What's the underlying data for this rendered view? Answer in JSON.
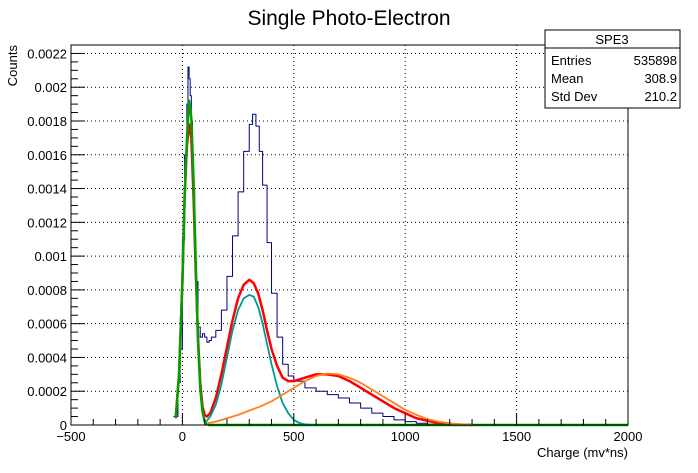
{
  "chart_data": {
    "type": "line",
    "title": "Single Photo-Electron",
    "xlabel": "Charge (mv*ns)",
    "ylabel": "Counts",
    "xlim": [
      -500,
      2000
    ],
    "ylim": [
      0,
      0.00225
    ],
    "x_ticks": [
      -500,
      0,
      500,
      1000,
      1500,
      2000
    ],
    "x_tick_labels": [
      "−500",
      "0",
      "500",
      "1000",
      "1500",
      "2000"
    ],
    "y_ticks": [
      0,
      0.0002,
      0.0004,
      0.0006,
      0.0008,
      0.001,
      0.0012,
      0.0014,
      0.0016,
      0.0018,
      0.002,
      0.0022
    ],
    "y_tick_labels": [
      "0",
      "0.0002",
      "0.0004",
      "0.0006",
      "0.0008",
      "0.001",
      "0.0012",
      "0.0014",
      "0.0016",
      "0.0018",
      "0.002",
      "0.0022"
    ],
    "grid": true,
    "stats_box": {
      "title": "SPE3",
      "rows": [
        {
          "label": "Entries",
          "value": "535898"
        },
        {
          "label": "Mean",
          "value": "308.9"
        },
        {
          "label": "Std Dev",
          "value": "210.2"
        }
      ]
    },
    "series": [
      {
        "color": "#000080",
        "style": "histogram",
        "x": [
          -40,
          -20,
          -10,
          0,
          10,
          20,
          25,
          30,
          35,
          40,
          45,
          50,
          55,
          60,
          70,
          80,
          90,
          100,
          110,
          120,
          130,
          150,
          175,
          200,
          225,
          250,
          275,
          300,
          315,
          330,
          345,
          360,
          380,
          400,
          425,
          450,
          475,
          500,
          550,
          600,
          650,
          700,
          750,
          800,
          850,
          900,
          950,
          1000,
          1050,
          1100,
          1150,
          1200
        ],
        "y": [
          5e-05,
          0.00025,
          0.00045,
          0.0011,
          0.0016,
          0.0019,
          0.00212,
          0.00205,
          0.00195,
          0.0018,
          0.0016,
          0.0014,
          0.0011,
          0.00085,
          0.00058,
          0.00052,
          0.00054,
          0.00052,
          0.00049,
          0.0005,
          0.00052,
          0.00056,
          0.00068,
          0.00088,
          0.00112,
          0.00138,
          0.00162,
          0.00178,
          0.00184,
          0.00177,
          0.00162,
          0.00142,
          0.00108,
          0.00078,
          0.00052,
          0.00036,
          0.00029,
          0.00026,
          0.00022,
          0.0002,
          0.00018,
          0.00016,
          0.00013,
          0.0001,
          7e-05,
          5e-05,
          3e-05,
          2e-05,
          1e-05,
          5e-06,
          2e-06,
          0
        ]
      },
      {
        "color": "#ff0000",
        "style": "line",
        "x": [
          -30,
          -15,
          0,
          10,
          20,
          30,
          40,
          50,
          60,
          70,
          80,
          90,
          100,
          110,
          125,
          150,
          175,
          200,
          225,
          250,
          275,
          300,
          320,
          340,
          360,
          380,
          400,
          425,
          450,
          475,
          500,
          525,
          550,
          600,
          650,
          700,
          750,
          800,
          850,
          900,
          950,
          1000,
          1050,
          1100,
          1150,
          1200,
          1250,
          1300
        ],
        "y": [
          4e-05,
          0.0003,
          0.00085,
          0.00135,
          0.00165,
          0.00178,
          0.0017,
          0.00135,
          0.0009,
          0.00052,
          0.00025,
          0.00011,
          6e-05,
          5e-05,
          7e-05,
          0.00016,
          0.0003,
          0.00046,
          0.00062,
          0.00075,
          0.00083,
          0.00086,
          0.00084,
          0.00078,
          0.00068,
          0.00056,
          0.00045,
          0.00035,
          0.00028,
          0.00026,
          0.00026,
          0.00027,
          0.00028,
          0.0003,
          0.0003,
          0.00029,
          0.00026,
          0.00022,
          0.00018,
          0.00014,
          0.0001,
          7e-05,
          4e-05,
          2.5e-05,
          1.2e-05,
          5e-06,
          2e-06,
          0
        ]
      },
      {
        "color": "#00a000",
        "style": "line",
        "x": [
          -30,
          -15,
          0,
          10,
          20,
          30,
          40,
          50,
          60,
          70,
          80,
          90,
          100,
          110,
          120,
          200,
          500,
          1000,
          1500,
          2000
        ],
        "y": [
          4e-05,
          0.0003,
          0.00085,
          0.00135,
          0.00168,
          0.00192,
          0.00182,
          0.00145,
          0.00095,
          0.0005,
          0.00022,
          8e-05,
          2e-05,
          5e-06,
          0,
          0,
          0,
          0,
          0,
          0
        ]
      },
      {
        "color": "#009999",
        "style": "line",
        "x": [
          100,
          125,
          150,
          175,
          200,
          225,
          250,
          275,
          300,
          320,
          340,
          360,
          380,
          400,
          425,
          450,
          475,
          500,
          525,
          550,
          575,
          600
        ],
        "y": [
          1e-05,
          5e-05,
          0.00012,
          0.00024,
          0.0004,
          0.00056,
          0.00068,
          0.00075,
          0.00077,
          0.00076,
          0.0007,
          0.0006,
          0.00048,
          0.00036,
          0.00023,
          0.00013,
          7e-05,
          3e-05,
          1.2e-05,
          4e-06,
          1e-06,
          0
        ]
      },
      {
        "color": "#ff8020",
        "style": "line",
        "x": [
          110,
          150,
          200,
          250,
          300,
          350,
          400,
          450,
          500,
          550,
          600,
          650,
          700,
          750,
          800,
          850,
          900,
          950,
          1000,
          1050,
          1100,
          1150,
          1200,
          1250,
          1300
        ],
        "y": [
          1e-05,
          2e-05,
          4e-05,
          6e-05,
          8.5e-05,
          0.00011,
          0.00014,
          0.00018,
          0.00022,
          0.00026,
          0.00029,
          0.000305,
          0.0003,
          0.00028,
          0.00025,
          0.00021,
          0.00017,
          0.00013,
          9e-05,
          6e-05,
          3.5e-05,
          2e-05,
          1e-05,
          4e-06,
          0
        ]
      }
    ]
  }
}
